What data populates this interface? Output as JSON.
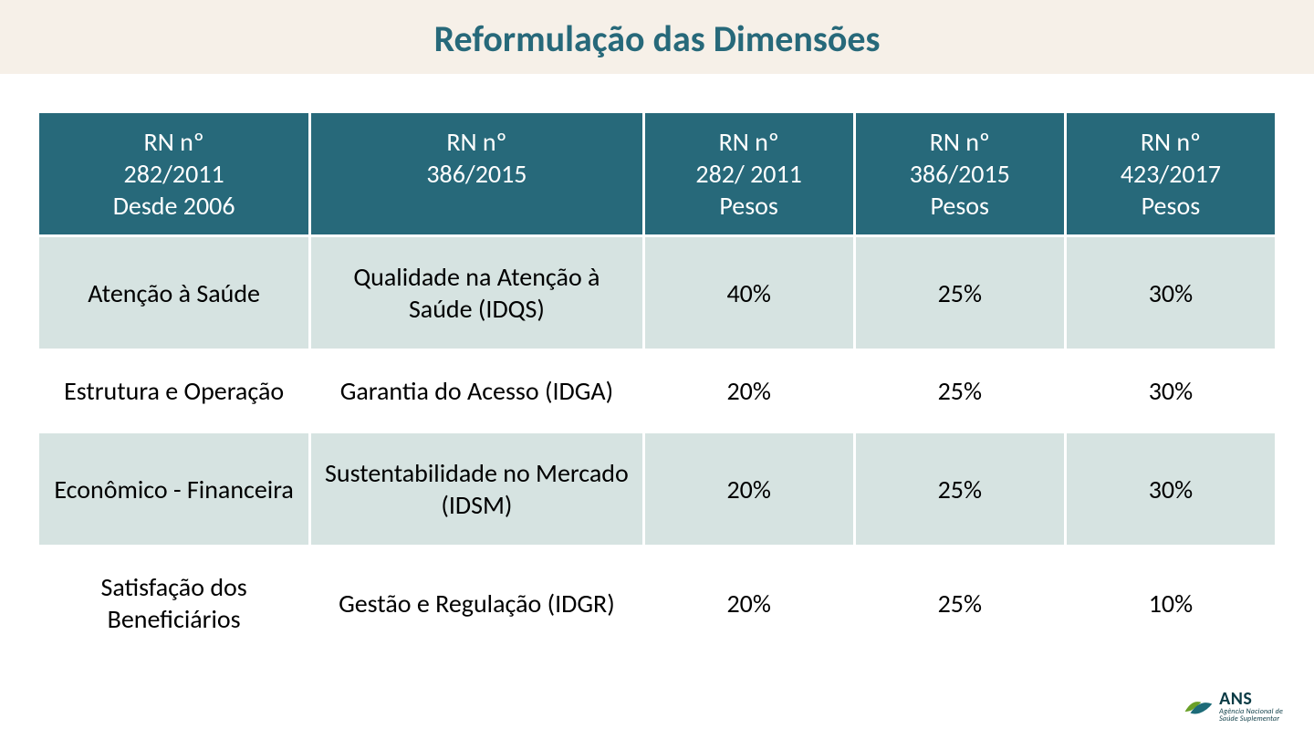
{
  "colors": {
    "title_band_bg": "#f6f0e8",
    "title_text": "#27697a",
    "header_bg": "#27697a",
    "header_text": "#ffffff",
    "row_band_bg": "#d6e3e1",
    "row_plain_bg": "#ffffff",
    "cell_text": "#000000",
    "logo_green": "#6aa028",
    "logo_teal": "#1d6b78",
    "logo_text": "#0b3b45"
  },
  "title": "Reformulação das Dimensões",
  "table": {
    "type": "table",
    "col_widths_pct": [
      22,
      27,
      17,
      17,
      17
    ],
    "header_fontsize_pt": 21,
    "cell_fontsize_pt": 21,
    "columns": [
      "RN nº\n282/2011\nDesde 2006",
      "RN nº\n386/2015",
      "RN nº\n282/ 2011\nPesos",
      "RN nº\n386/2015\nPesos",
      "RN nº\n423/2017\nPesos"
    ],
    "rows": [
      {
        "banded": true,
        "cells": [
          "Atenção à Saúde",
          "Qualidade na Atenção à Saúde (IDQS)",
          "40%",
          "25%",
          "30%"
        ]
      },
      {
        "banded": false,
        "cells": [
          "Estrutura e Operação",
          "Garantia do Acesso (IDGA)",
          "20%",
          "25%",
          "30%"
        ]
      },
      {
        "banded": true,
        "cells": [
          "Econômico - Financeira",
          "Sustentabilidade no Mercado (IDSM)",
          "20%",
          "25%",
          "30%"
        ]
      },
      {
        "banded": false,
        "cells": [
          "Satisfação dos Beneficiários",
          "Gestão e Regulação (IDGR)",
          "20%",
          "25%",
          "10%"
        ]
      }
    ]
  },
  "logo": {
    "acronym": "ANS",
    "line1": "Agência Nacional de",
    "line2": "Saúde Suplementar"
  }
}
